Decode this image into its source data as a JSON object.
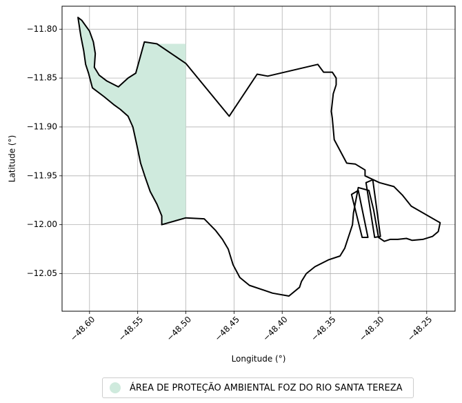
{
  "map": {
    "xlabel": "Longitude (°)",
    "ylabel": "Latitude (°)",
    "xlim": [
      -48.6285,
      -48.2205
    ],
    "ylim": [
      -12.0885,
      -11.7765
    ],
    "xticks": [
      -48.6,
      -48.55,
      -48.5,
      -48.45,
      -48.4,
      -48.35,
      -48.3,
      -48.25
    ],
    "xtick_labels": [
      "−48.60",
      "−48.55",
      "−48.50",
      "−48.45",
      "−48.40",
      "−48.35",
      "−48.30",
      "−48.25"
    ],
    "yticks": [
      -11.8,
      -11.85,
      -11.9,
      -11.95,
      -12.0,
      -12.05
    ],
    "ytick_labels": [
      "−11.80",
      "−11.85",
      "−11.90",
      "−11.95",
      "−12.00",
      "−12.05"
    ],
    "grid": true,
    "colors": {
      "fill": "#cfeadd",
      "boundary": "#000000",
      "grid": "#b0b0b0"
    }
  },
  "chart_data": {
    "type": "map",
    "protected_area": {
      "name": "ÁREA DE PROTEÇÃO AMBIENTAL FOZ DO RIO SANTA TEREZA",
      "polygon": [
        [
          -48.612,
          -11.788
        ],
        [
          -48.608,
          -11.791
        ],
        [
          -48.6,
          -11.802
        ],
        [
          -48.596,
          -11.813
        ],
        [
          -48.594,
          -11.825
        ],
        [
          -48.595,
          -11.839
        ],
        [
          -48.59,
          -11.847
        ],
        [
          -48.582,
          -11.853
        ],
        [
          -48.57,
          -11.859
        ],
        [
          -48.56,
          -11.85
        ],
        [
          -48.552,
          -11.845
        ],
        [
          -48.543,
          -11.813
        ],
        [
          -48.53,
          -11.815
        ],
        [
          -48.5,
          -11.815
        ],
        [
          -48.5,
          -11.993
        ],
        [
          -48.525,
          -12.0
        ],
        [
          -48.525,
          -11.991
        ],
        [
          -48.53,
          -11.979
        ],
        [
          -48.537,
          -11.966
        ],
        [
          -48.542,
          -11.952
        ],
        [
          -48.547,
          -11.937
        ],
        [
          -48.551,
          -11.918
        ],
        [
          -48.555,
          -11.9
        ],
        [
          -48.56,
          -11.889
        ],
        [
          -48.568,
          -11.882
        ],
        [
          -48.575,
          -11.877
        ],
        [
          -48.585,
          -11.869
        ],
        [
          -48.597,
          -11.86
        ],
        [
          -48.601,
          -11.845
        ],
        [
          -48.604,
          -11.836
        ],
        [
          -48.606,
          -11.822
        ],
        [
          -48.609,
          -11.807
        ]
      ]
    },
    "outline": [
      [
        -48.612,
        -11.788
      ],
      [
        -48.608,
        -11.791
      ],
      [
        -48.6,
        -11.802
      ],
      [
        -48.596,
        -11.813
      ],
      [
        -48.594,
        -11.825
      ],
      [
        -48.595,
        -11.839
      ],
      [
        -48.59,
        -11.847
      ],
      [
        -48.582,
        -11.853
      ],
      [
        -48.57,
        -11.859
      ],
      [
        -48.56,
        -11.85
      ],
      [
        -48.552,
        -11.845
      ],
      [
        -48.543,
        -11.813
      ],
      [
        -48.53,
        -11.815
      ],
      [
        -48.5,
        -11.835
      ],
      [
        -48.455,
        -11.889
      ],
      [
        -48.426,
        -11.846
      ],
      [
        -48.415,
        -11.848
      ],
      [
        -48.363,
        -11.836
      ],
      [
        -48.357,
        -11.844
      ],
      [
        -48.348,
        -11.844
      ],
      [
        -48.344,
        -11.85
      ],
      [
        -48.344,
        -11.857
      ],
      [
        -48.347,
        -11.866
      ],
      [
        -48.349,
        -11.884
      ],
      [
        -48.348,
        -11.891
      ],
      [
        -48.346,
        -11.913
      ],
      [
        -48.333,
        -11.937
      ],
      [
        -48.324,
        -11.938
      ],
      [
        -48.314,
        -11.944
      ],
      [
        -48.314,
        -11.95
      ],
      [
        -48.299,
        -11.957
      ],
      [
        -48.284,
        -11.961
      ],
      [
        -48.275,
        -11.97
      ],
      [
        -48.266,
        -11.981
      ],
      [
        -48.236,
        -11.998
      ],
      [
        -48.238,
        -12.007
      ],
      [
        -48.244,
        -12.012
      ],
      [
        -48.254,
        -12.015
      ],
      [
        -48.265,
        -12.016
      ],
      [
        -48.271,
        -12.014
      ],
      [
        -48.28,
        -12.015
      ],
      [
        -48.288,
        -12.015
      ],
      [
        -48.294,
        -12.017
      ],
      [
        -48.3,
        -12.013
      ],
      [
        -48.305,
        -11.985
      ],
      [
        -48.31,
        -11.965
      ],
      [
        -48.321,
        -11.962
      ],
      [
        -48.326,
        -11.988
      ],
      [
        -48.327,
        -12.0
      ],
      [
        -48.331,
        -12.012
      ],
      [
        -48.335,
        -12.024
      ],
      [
        -48.34,
        -12.032
      ],
      [
        -48.352,
        -12.036
      ],
      [
        -48.366,
        -12.043
      ],
      [
        -48.375,
        -12.05
      ],
      [
        -48.38,
        -12.058
      ],
      [
        -48.382,
        -12.064
      ],
      [
        -48.393,
        -12.073
      ],
      [
        -48.41,
        -12.07
      ],
      [
        -48.434,
        -12.062
      ],
      [
        -48.444,
        -12.054
      ],
      [
        -48.451,
        -12.041
      ],
      [
        -48.456,
        -12.025
      ],
      [
        -48.462,
        -12.015
      ],
      [
        -48.469,
        -12.006
      ],
      [
        -48.481,
        -11.994
      ],
      [
        -48.5,
        -11.993
      ],
      [
        -48.525,
        -12.0
      ],
      [
        -48.525,
        -11.991
      ],
      [
        -48.53,
        -11.979
      ],
      [
        -48.537,
        -11.966
      ],
      [
        -48.542,
        -11.952
      ],
      [
        -48.547,
        -11.937
      ],
      [
        -48.551,
        -11.918
      ],
      [
        -48.555,
        -11.9
      ],
      [
        -48.56,
        -11.889
      ],
      [
        -48.568,
        -11.882
      ],
      [
        -48.575,
        -11.877
      ],
      [
        -48.585,
        -11.869
      ],
      [
        -48.597,
        -11.86
      ],
      [
        -48.601,
        -11.845
      ],
      [
        -48.604,
        -11.836
      ],
      [
        -48.606,
        -11.822
      ],
      [
        -48.609,
        -11.807
      ],
      [
        -48.612,
        -11.788
      ]
    ],
    "inner_strips": [
      [
        [
          -48.328,
          -11.969
        ],
        [
          -48.321,
          -11.965
        ],
        [
          -48.311,
          -12.013
        ],
        [
          -48.317,
          -12.013
        ]
      ],
      [
        [
          -48.313,
          -11.957
        ],
        [
          -48.306,
          -11.954
        ],
        [
          -48.298,
          -12.012
        ],
        [
          -48.304,
          -12.013
        ]
      ]
    ]
  },
  "legend": {
    "label": "ÁREA DE PROTEÇÃO AMBIENTAL FOZ DO RIO SANTA TEREZA",
    "color": "#cfeadd"
  }
}
